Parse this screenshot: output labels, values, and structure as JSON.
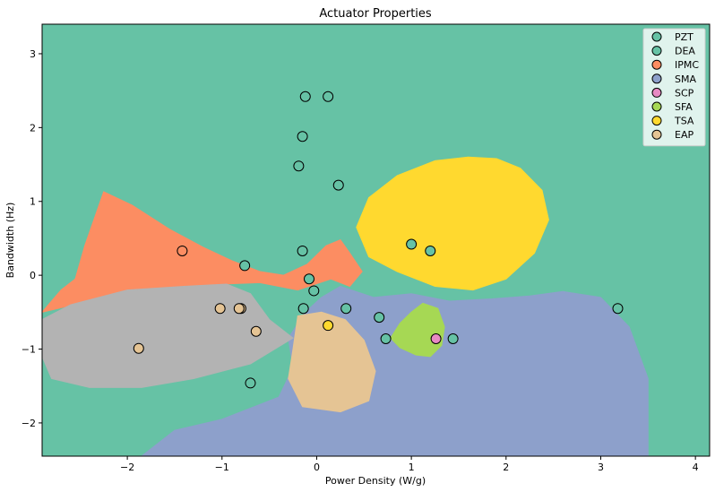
{
  "chart_data": {
    "type": "scatter",
    "title": "Actuator Properties",
    "xlabel": "Power Density (W/g)",
    "ylabel": "Bandwidth (Hz)",
    "xlim": [
      -2.9,
      4.15
    ],
    "ylim": [
      -2.45,
      3.4
    ],
    "xticks": [
      -2,
      -1,
      0,
      1,
      2,
      3,
      4
    ],
    "yticks": [
      -2,
      -1,
      0,
      1,
      2,
      3
    ],
    "xtick_labels": [
      "−2",
      "−1",
      "0",
      "1",
      "2",
      "3",
      "4"
    ],
    "ytick_labels": [
      "−2",
      "−1",
      "0",
      "1",
      "2",
      "3"
    ],
    "legend_position": "top-right",
    "background_color": "#66c2a5",
    "series": [
      {
        "name": "PZT",
        "color": "#66c2a5",
        "points": [
          [
            -0.12,
            2.42
          ],
          [
            0.12,
            2.42
          ],
          [
            -0.15,
            1.88
          ],
          [
            -0.19,
            1.48
          ],
          [
            0.23,
            1.22
          ],
          [
            -0.15,
            0.33
          ],
          [
            -0.76,
            0.13
          ],
          [
            -0.08,
            -0.05
          ],
          [
            -0.03,
            -0.21
          ],
          [
            -0.14,
            -0.45
          ],
          [
            1.0,
            0.42
          ],
          [
            1.2,
            0.33
          ],
          [
            3.18,
            -0.45
          ],
          [
            0.66,
            -0.57
          ]
        ]
      },
      {
        "name": "DEA",
        "color": "#66c2a5",
        "points": [
          [
            -0.7,
            -1.46
          ],
          [
            0.31,
            -0.45
          ],
          [
            0.73,
            -0.86
          ],
          [
            1.44,
            -0.86
          ]
        ]
      },
      {
        "name": "IPMC",
        "color": "#fc8d62",
        "points": [
          [
            -1.42,
            0.33
          ]
        ]
      },
      {
        "name": "SMA",
        "color": "#8da0cb",
        "points": []
      },
      {
        "name": "SCP",
        "color": "#e78ac3",
        "points": [
          [
            1.26,
            -0.86
          ]
        ]
      },
      {
        "name": "SFA",
        "color": "#a6d854",
        "points": []
      },
      {
        "name": "TSA",
        "color": "#ffd92f",
        "points": [
          [
            0.12,
            -0.68
          ]
        ]
      },
      {
        "name": "EAP",
        "color": "#e5c494",
        "points": [
          [
            -1.02,
            -0.45
          ],
          [
            -0.8,
            -0.45
          ],
          [
            -0.82,
            -0.45
          ],
          [
            -0.64,
            -0.76
          ],
          [
            -1.88,
            -0.99
          ]
        ]
      }
    ],
    "regions": [
      {
        "name": "IPMC",
        "color": "#fc8d62",
        "polygon": [
          [
            -2.9,
            -0.5
          ],
          [
            -2.7,
            -0.2
          ],
          [
            -2.55,
            -0.05
          ],
          [
            -2.45,
            0.4
          ],
          [
            -2.25,
            1.13
          ],
          [
            -1.95,
            0.95
          ],
          [
            -1.55,
            0.62
          ],
          [
            -1.2,
            0.38
          ],
          [
            -0.9,
            0.2
          ],
          [
            -0.6,
            0.05
          ],
          [
            -0.35,
            0.0
          ],
          [
            -0.1,
            0.15
          ],
          [
            0.1,
            0.4
          ],
          [
            0.25,
            0.48
          ],
          [
            0.35,
            0.3
          ],
          [
            0.48,
            0.05
          ],
          [
            0.35,
            -0.15
          ],
          [
            0.15,
            -0.05
          ],
          [
            -0.2,
            -0.2
          ],
          [
            -0.6,
            -0.1
          ],
          [
            -1.0,
            -0.12
          ],
          [
            -1.5,
            -0.2
          ],
          [
            -2.0,
            -0.3
          ],
          [
            -2.5,
            -0.38
          ]
        ]
      },
      {
        "name": "SMA",
        "color": "#8da0cb",
        "polygon": [
          [
            -1.85,
            -2.45
          ],
          [
            -1.5,
            -2.1
          ],
          [
            -1.0,
            -1.95
          ],
          [
            -0.4,
            -1.65
          ],
          [
            -0.25,
            -1.25
          ],
          [
            -0.3,
            -0.85
          ],
          [
            -0.12,
            -0.5
          ],
          [
            0.05,
            -0.3
          ],
          [
            0.25,
            -0.15
          ],
          [
            0.6,
            -0.3
          ],
          [
            1.0,
            -0.25
          ],
          [
            1.4,
            -0.35
          ],
          [
            1.85,
            -0.32
          ],
          [
            2.25,
            -0.28
          ],
          [
            2.6,
            -0.22
          ],
          [
            3.0,
            -0.3
          ],
          [
            3.3,
            -0.7
          ],
          [
            3.5,
            -1.4
          ],
          [
            3.5,
            -2.45
          ]
        ]
      },
      {
        "name": "EAP_gray",
        "color": "#b3b3b3",
        "polygon": [
          [
            -2.9,
            -0.6
          ],
          [
            -2.6,
            -0.4
          ],
          [
            -2.0,
            -0.2
          ],
          [
            -1.4,
            -0.15
          ],
          [
            -0.95,
            -0.12
          ],
          [
            -0.7,
            -0.25
          ],
          [
            -0.5,
            -0.6
          ],
          [
            -0.25,
            -0.85
          ],
          [
            -0.7,
            -1.2
          ],
          [
            -1.3,
            -1.4
          ],
          [
            -1.85,
            -1.52
          ],
          [
            -2.4,
            -1.52
          ],
          [
            -2.8,
            -1.4
          ],
          [
            -2.9,
            -1.1
          ]
        ]
      },
      {
        "name": "EAP",
        "color": "#e5c494",
        "polygon": [
          [
            -0.2,
            -0.55
          ],
          [
            0.05,
            -0.5
          ],
          [
            0.3,
            -0.6
          ],
          [
            0.5,
            -0.88
          ],
          [
            0.62,
            -1.3
          ],
          [
            0.55,
            -1.7
          ],
          [
            0.25,
            -1.85
          ],
          [
            -0.15,
            -1.78
          ],
          [
            -0.3,
            -1.4
          ],
          [
            -0.25,
            -1.0
          ]
        ]
      },
      {
        "name": "SFA",
        "color": "#a6d854",
        "polygon": [
          [
            1.12,
            -0.38
          ],
          [
            1.28,
            -0.45
          ],
          [
            1.35,
            -0.7
          ],
          [
            1.32,
            -0.95
          ],
          [
            1.2,
            -1.1
          ],
          [
            1.05,
            -1.08
          ],
          [
            0.88,
            -0.98
          ],
          [
            0.78,
            -0.85
          ],
          [
            0.88,
            -0.65
          ],
          [
            1.0,
            -0.5
          ]
        ]
      },
      {
        "name": "TSA",
        "color": "#ffd92f",
        "polygon": [
          [
            1.6,
            1.6
          ],
          [
            1.25,
            1.55
          ],
          [
            0.85,
            1.35
          ],
          [
            0.55,
            1.05
          ],
          [
            0.42,
            0.65
          ],
          [
            0.55,
            0.25
          ],
          [
            0.85,
            0.05
          ],
          [
            1.25,
            -0.15
          ],
          [
            1.65,
            -0.2
          ],
          [
            2.0,
            -0.05
          ],
          [
            2.3,
            0.3
          ],
          [
            2.45,
            0.75
          ],
          [
            2.38,
            1.15
          ],
          [
            2.15,
            1.45
          ],
          [
            1.9,
            1.58
          ]
        ]
      }
    ]
  }
}
